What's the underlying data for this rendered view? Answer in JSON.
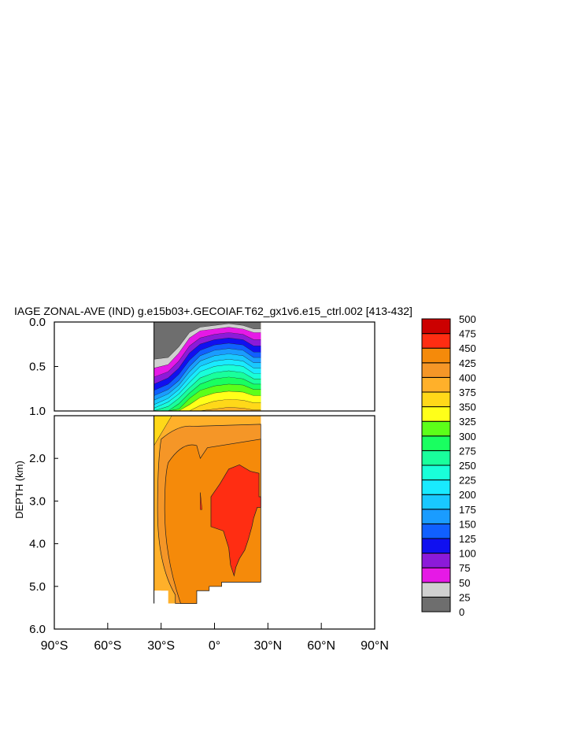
{
  "chart_data": {
    "type": "heatmap",
    "title": "IAGE ZONAL-AVE (IND) g.e15b03+.GECOIAF.T62_gx1v6.e15_ctrl.002 [413-432]",
    "ylabel": "DEPTH (km)",
    "x_ticks": [
      {
        "value": -90,
        "label": "90°S"
      },
      {
        "value": -60,
        "label": "60°S"
      },
      {
        "value": -30,
        "label": "30°S"
      },
      {
        "value": 0,
        "label": "0°"
      },
      {
        "value": 30,
        "label": "30°N"
      },
      {
        "value": 60,
        "label": "60°N"
      },
      {
        "value": 90,
        "label": "90°N"
      }
    ],
    "xlim": [
      -90,
      90
    ],
    "upper_panel": {
      "ylim": [
        0.0,
        1.0
      ],
      "y_ticks": [
        "0.0",
        "0.5",
        "1.0"
      ],
      "y_tick_values": [
        0.0,
        0.5,
        1.0
      ]
    },
    "lower_panel": {
      "ylim": [
        1.0,
        6.0
      ],
      "y_ticks": [
        "2.0",
        "3.0",
        "4.0",
        "5.0",
        "6.0"
      ],
      "y_tick_values": [
        2.0,
        3.0,
        4.0,
        5.0,
        6.0
      ]
    },
    "colorbar": {
      "levels": [
        "0",
        "25",
        "50",
        "75",
        "100",
        "125",
        "150",
        "175",
        "200",
        "225",
        "250",
        "275",
        "300",
        "325",
        "350",
        "375",
        "400",
        "425",
        "450",
        "475",
        "500"
      ],
      "colors": [
        "#6e6e6e",
        "#d0d0d0",
        "#e619e6",
        "#8c1ad9",
        "#1010f0",
        "#1060ff",
        "#1a9cff",
        "#19c8ff",
        "#19eaff",
        "#19ffd9",
        "#19ff9c",
        "#19ff60",
        "#5cff19",
        "#ffff19",
        "#ffd819",
        "#ffb02a",
        "#f59627",
        "#f58a0a",
        "#ff2d12",
        "#f20d0d",
        "#cc0000"
      ]
    },
    "data_region": {
      "lat_min": -34,
      "lat_max": 26,
      "depth_max": 5.4
    },
    "upper_bands": [
      {
        "color": "#6e6e6e",
        "y": [
          0.0,
          0.0,
          0.0,
          0.0,
          0.0,
          0.0,
          0.0,
          0.0,
          0.0
        ],
        "lat": [
          -34,
          -26,
          -20,
          -14,
          -8,
          0,
          8,
          16,
          22
        ]
      },
      {
        "color": "#d0d0d0",
        "y": [
          0.42,
          0.4,
          0.28,
          0.12,
          0.06,
          0.04,
          0.02,
          0.04,
          0.08
        ]
      },
      {
        "color": "#e619e6",
        "y": [
          0.52,
          0.48,
          0.35,
          0.18,
          0.1,
          0.08,
          0.06,
          0.08,
          0.12
        ]
      },
      {
        "color": "#8c1ad9",
        "y": [
          0.62,
          0.56,
          0.44,
          0.27,
          0.18,
          0.14,
          0.12,
          0.14,
          0.2
        ]
      },
      {
        "color": "#1010f0",
        "y": [
          0.7,
          0.63,
          0.52,
          0.35,
          0.25,
          0.2,
          0.18,
          0.2,
          0.27
        ]
      },
      {
        "color": "#1060ff",
        "y": [
          0.77,
          0.7,
          0.59,
          0.43,
          0.32,
          0.26,
          0.24,
          0.26,
          0.34
        ]
      },
      {
        "color": "#1a9cff",
        "y": [
          0.83,
          0.76,
          0.66,
          0.5,
          0.38,
          0.32,
          0.3,
          0.32,
          0.4
        ]
      },
      {
        "color": "#19c8ff",
        "y": [
          0.88,
          0.81,
          0.71,
          0.56,
          0.44,
          0.38,
          0.36,
          0.38,
          0.46
        ]
      },
      {
        "color": "#19eaff",
        "y": [
          0.93,
          0.86,
          0.76,
          0.62,
          0.5,
          0.44,
          0.42,
          0.44,
          0.52
        ]
      },
      {
        "color": "#19ffd9",
        "y": [
          0.97,
          0.9,
          0.81,
          0.68,
          0.56,
          0.5,
          0.48,
          0.5,
          0.58
        ]
      },
      {
        "color": "#19ff9c",
        "y": [
          1.0,
          0.95,
          0.86,
          0.74,
          0.63,
          0.57,
          0.55,
          0.57,
          0.64
        ]
      },
      {
        "color": "#19ff60",
        "y": [
          1.0,
          1.0,
          0.92,
          0.8,
          0.7,
          0.64,
          0.62,
          0.64,
          0.7
        ]
      },
      {
        "color": "#5cff19",
        "y": [
          1.0,
          1.0,
          0.98,
          0.86,
          0.77,
          0.72,
          0.7,
          0.71,
          0.76
        ]
      },
      {
        "color": "#ffff19",
        "y": [
          1.0,
          1.0,
          1.0,
          0.93,
          0.85,
          0.8,
          0.78,
          0.79,
          0.83
        ]
      },
      {
        "color": "#ffd819",
        "y": [
          1.0,
          1.0,
          1.0,
          1.0,
          0.94,
          0.89,
          0.87,
          0.88,
          0.91
        ]
      },
      {
        "color": "#ffb02a",
        "y": [
          1.0,
          1.0,
          1.0,
          1.0,
          1.0,
          0.98,
          0.96,
          0.97,
          0.99
        ]
      }
    ]
  }
}
